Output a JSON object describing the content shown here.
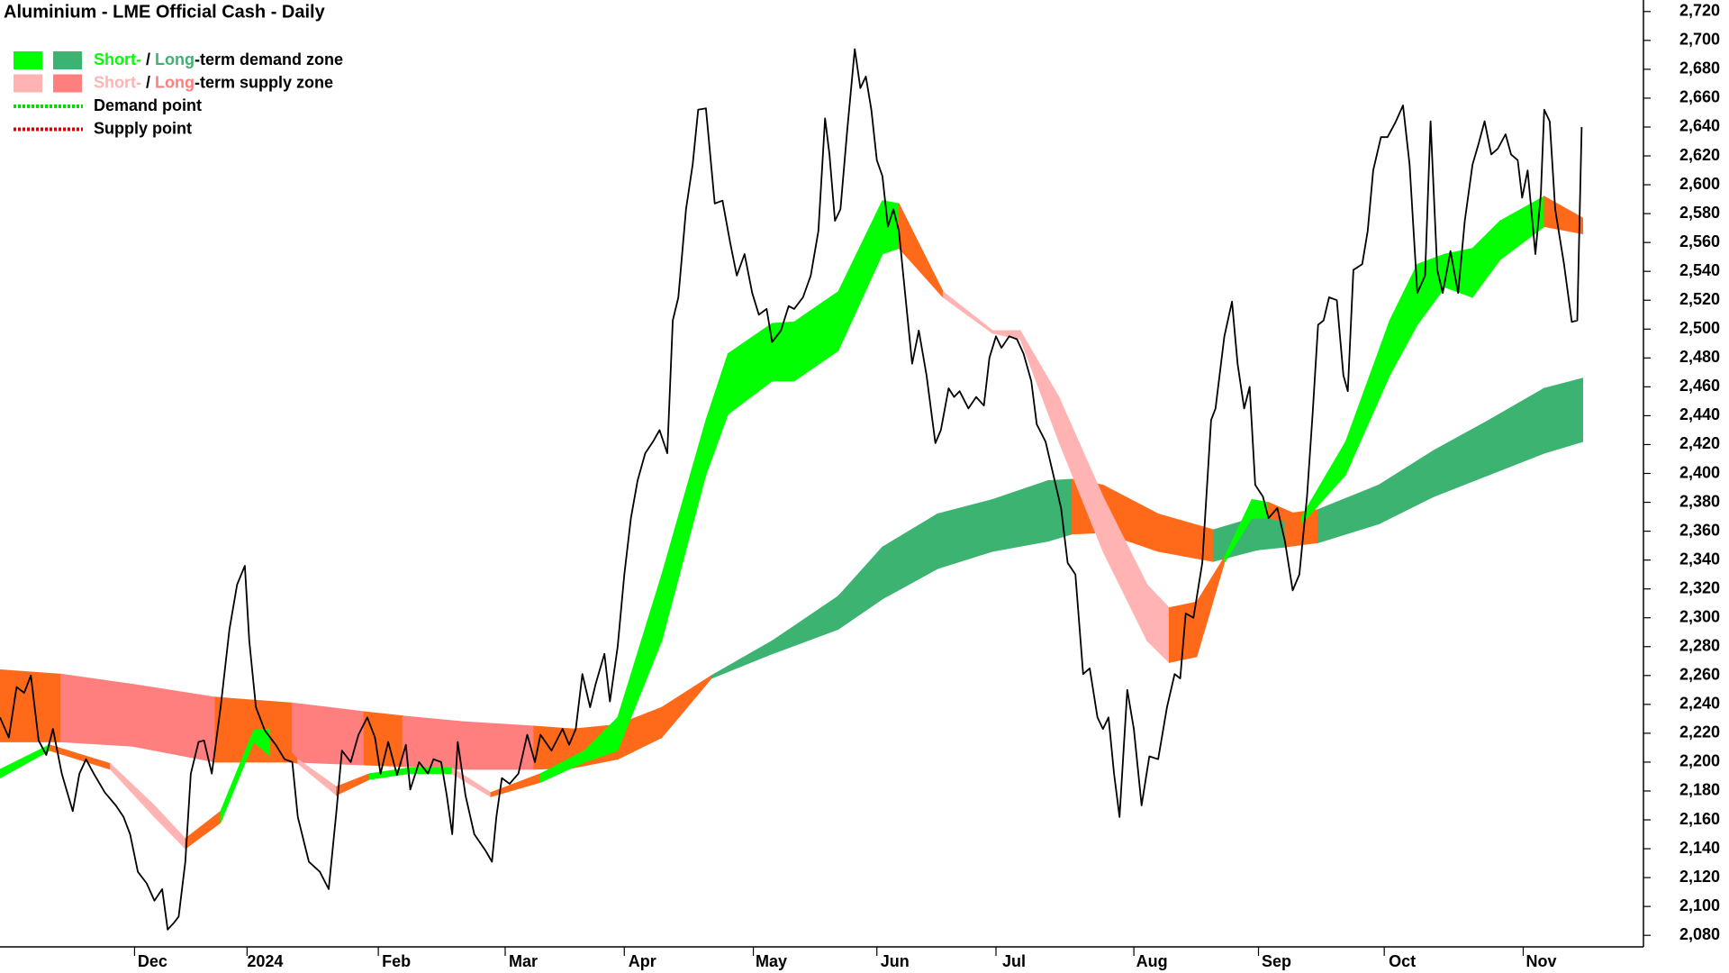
{
  "chart_data": {
    "type": "line",
    "title": "Aluminium - LME Official Cash - Daily",
    "xlim": [
      0,
      149
    ],
    "xticks": [
      {
        "value": 12.2,
        "label": "Dec"
      },
      {
        "value": 22.4,
        "label": "2024"
      },
      {
        "value": 34.3,
        "label": "Feb"
      },
      {
        "value": 45.8,
        "label": "Mar"
      },
      {
        "value": 56.6,
        "label": "Apr"
      },
      {
        "value": 68.3,
        "label": "May"
      },
      {
        "value": 79.5,
        "label": "Jun"
      },
      {
        "value": 90.3,
        "label": "Jul"
      },
      {
        "value": 102.8,
        "label": "Aug"
      },
      {
        "value": 114.1,
        "label": "Sep"
      },
      {
        "value": 125.5,
        "label": "Oct"
      },
      {
        "value": 138.1,
        "label": "Nov"
      }
    ],
    "ylim": [
      2072,
      2728
    ],
    "yticks": [
      {
        "value": 2080,
        "label": "2,080"
      },
      {
        "value": 2100,
        "label": "2,100"
      },
      {
        "value": 2120,
        "label": "2,120"
      },
      {
        "value": 2140,
        "label": "2,140"
      },
      {
        "value": 2160,
        "label": "2,160"
      },
      {
        "value": 2180,
        "label": "2,180"
      },
      {
        "value": 2200,
        "label": "2,200"
      },
      {
        "value": 2220,
        "label": "2,220"
      },
      {
        "value": 2240,
        "label": "2,240"
      },
      {
        "value": 2260,
        "label": "2,260"
      },
      {
        "value": 2280,
        "label": "2,280"
      },
      {
        "value": 2300,
        "label": "2,300"
      },
      {
        "value": 2320,
        "label": "2,320"
      },
      {
        "value": 2340,
        "label": "2,340"
      },
      {
        "value": 2360,
        "label": "2,360"
      },
      {
        "value": 2380,
        "label": "2,380"
      },
      {
        "value": 2400,
        "label": "2,400"
      },
      {
        "value": 2420,
        "label": "2,420"
      },
      {
        "value": 2440,
        "label": "2,440"
      },
      {
        "value": 2460,
        "label": "2,460"
      },
      {
        "value": 2480,
        "label": "2,480"
      },
      {
        "value": 2500,
        "label": "2,500"
      },
      {
        "value": 2520,
        "label": "2,520"
      },
      {
        "value": 2540,
        "label": "2,540"
      },
      {
        "value": 2560,
        "label": "2,560"
      },
      {
        "value": 2580,
        "label": "2,580"
      },
      {
        "value": 2600,
        "label": "2,600"
      },
      {
        "value": 2620,
        "label": "2,620"
      },
      {
        "value": 2640,
        "label": "2,640"
      },
      {
        "value": 2660,
        "label": "2,660"
      },
      {
        "value": 2680,
        "label": "2,680"
      },
      {
        "value": 2700,
        "label": "2,700"
      },
      {
        "value": 2720,
        "label": "2,720"
      }
    ],
    "grid": false,
    "legend": [
      {
        "short": "Short-",
        "sep": " / ",
        "long": "Long",
        "rest": "-term demand zone",
        "short_color": "#00ff00",
        "long_color": "#3cb371"
      },
      {
        "short": "Short-",
        "sep": " / ",
        "long": "Long",
        "rest": "-term supply zone",
        "short_color": "#ffb3b3",
        "long_color": "#ff7f7f"
      },
      {
        "label": "Demand point",
        "color": "#00dd00"
      },
      {
        "label": "Supply point",
        "color": "#dd0000"
      }
    ],
    "bands": [
      {
        "x": [
          0,
          5.5,
          12,
          19.5,
          26.5,
          33,
          36.5,
          42,
          48.4,
          52,
          56,
          60,
          64.5,
          70,
          76,
          80,
          85,
          90,
          95,
          97.2,
          100,
          105,
          110,
          114,
          116.5,
          119.5,
          125,
          130,
          135,
          140,
          143.5
        ],
        "upper": [
          2264,
          2261,
          2254,
          2245,
          2241,
          2235,
          2232,
          2228,
          2225,
          2223,
          2226,
          2238,
          2260,
          2284,
          2315,
          2349,
          2372,
          2382,
          2395,
          2396,
          2392,
          2372,
          2361,
          2370,
          2372,
          2375,
          2392,
          2416,
          2437,
          2459,
          2466
        ],
        "lower": [
          2214,
          2214,
          2211,
          2200,
          2200,
          2198,
          2197,
          2195,
          2195,
          2196,
          2202,
          2217,
          2258,
          2275,
          2292,
          2313,
          2334,
          2346,
          2353,
          2358,
          2359,
          2346,
          2339,
          2347,
          2349,
          2352,
          2365,
          2384,
          2399,
          2414,
          2422
        ],
        "colors": [
          "#ff6a1a",
          "#ff7f7f",
          "#ff7f7f",
          "#ff6a1a",
          "#ff7f7f",
          "#ff6a1a",
          "#ff7f7f",
          "#ff7f7f",
          "#ff6a1a",
          "#ff6a1a",
          "#ff6a1a",
          "#ff6a1a",
          "#3cb371",
          "#3cb371",
          "#3cb371",
          "#3cb371",
          "#3cb371",
          "#3cb371",
          "#3cb371",
          "#ff6a1a",
          "#ff6a1a",
          "#ff6a1a",
          "#3cb371",
          "#3cb371",
          "#ff6a1a",
          "#3cb371",
          "#3cb371",
          "#3cb371",
          "#3cb371",
          "#3cb371"
        ]
      },
      {
        "x": [
          0,
          4.5,
          10,
          14,
          16.8,
          20,
          23,
          24.5,
          27,
          30.5,
          33.5,
          37,
          41,
          44.5,
          49,
          53,
          56,
          60,
          64,
          66,
          70,
          72,
          76,
          80,
          81.5,
          85.5,
          90,
          92.5,
          96,
          100,
          104,
          106,
          108.5,
          111,
          113.5,
          115,
          118,
          122,
          126,
          128.5,
          131,
          133.5,
          136,
          140,
          143.5
        ],
        "upper": [
          2195,
          2212,
          2199,
          2170,
          2147,
          2166,
          2222,
          2223,
          2202,
          2183,
          2192,
          2196,
          2196,
          2179,
          2192,
          2208,
          2231,
          2330,
          2437,
          2483,
          2504,
          2505,
          2526,
          2589,
          2587,
          2526,
          2499,
          2499,
          2453,
          2384,
          2323,
          2307,
          2311,
          2342,
          2382,
          2380,
          2370,
          2422,
          2506,
          2545,
          2552,
          2556,
          2575,
          2592,
          2577
        ],
        "lower": [
          2189,
          2208,
          2195,
          2162,
          2140,
          2158,
          2214,
          2204,
          2199,
          2177,
          2188,
          2192,
          2192,
          2176,
          2186,
          2200,
          2208,
          2284,
          2399,
          2441,
          2464,
          2464,
          2485,
          2552,
          2556,
          2522,
          2497,
          2493,
          2422,
          2346,
          2284,
          2269,
          2273,
          2338,
          2369,
          2369,
          2365,
          2399,
          2468,
          2503,
          2529,
          2522,
          2548,
          2571,
          2566
        ],
        "colors": [
          "#00ff00",
          "#ff6a1a",
          "#ffb3b3",
          "#ffb3b3",
          "#ff6a1a",
          "#00ff00",
          "#00ff00",
          "#ff6a1a",
          "#ffb3b3",
          "#ff6a1a",
          "#00ff00",
          "#00ff00",
          "#ffb3b3",
          "#ff6a1a",
          "#00ff00",
          "#00ff00",
          "#00ff00",
          "#00ff00",
          "#00ff00",
          "#00ff00",
          "#00ff00",
          "#00ff00",
          "#00ff00",
          "#00ff00",
          "#ff6a1a",
          "#ffb3b3",
          "#ffb3b3",
          "#ffb3b3",
          "#ffb3b3",
          "#ffb3b3",
          "#ffb3b3",
          "#ff6a1a",
          "#ff6a1a",
          "#00ff00",
          "#00ff00",
          "#ff6a1a",
          "#00ff00",
          "#00ff00",
          "#00ff00",
          "#00ff00",
          "#00ff00",
          "#00ff00",
          "#00ff00",
          "#ff6a1a"
        ]
      }
    ],
    "x": [
      0,
      0.8,
      1.5,
      2.2,
      2.8,
      3.5,
      4.2,
      4.8,
      5.6,
      6.6,
      7.2,
      7.8,
      8.5,
      9.5,
      10.5,
      11.2,
      11.8,
      12.5,
      13.3,
      14,
      14.7,
      15.2,
      15.8,
      16.2,
      16.8,
      17.3,
      18,
      18.5,
      19.2,
      20,
      20.8,
      21.5,
      22.2,
      22.6,
      23.2,
      24,
      25,
      25.8,
      26.5,
      27,
      28,
      29,
      29.8,
      30.5,
      31,
      31.8,
      32.5,
      33.3,
      34,
      34.5,
      35.2,
      36,
      36.8,
      37.2,
      38,
      38.8,
      39.3,
      40,
      40.5,
      41,
      41.5,
      42.2,
      43,
      44,
      44.6,
      45,
      45.5,
      46.2,
      47,
      47.8,
      48.5,
      49,
      50,
      51,
      51.6,
      52.2,
      52.8,
      53.5,
      54,
      54.8,
      55.3,
      56,
      56.6,
      57.2,
      57.8,
      58.5,
      59.2,
      59.8,
      60.5,
      61,
      61.5,
      62.2,
      62.8,
      63.3,
      64,
      64.8,
      65.5,
      66.2,
      66.8,
      67.5,
      68.2,
      68.8,
      69.5,
      70,
      70.8,
      71.5,
      72,
      72.8,
      73.5,
      74.2,
      74.8,
      75.2,
      75.7,
      76.2,
      76.8,
      77.5,
      78,
      78.5,
      79,
      79.5,
      80,
      80.5,
      81,
      81.5,
      82,
      82.7,
      83.3,
      84,
      84.8,
      85.3,
      86,
      86.5,
      87,
      87.8,
      88.5,
      89.2,
      89.7,
      90.3,
      90.8,
      91.5,
      92.2,
      92.8,
      93.5,
      94,
      94.8,
      95.5,
      96.2,
      96.8,
      97.5,
      98.2,
      98.8,
      99.5,
      100,
      100.5,
      101,
      101.5,
      102.2,
      102.8,
      103.5,
      104.2,
      105,
      105.8,
      106.5,
      107,
      107.5,
      108.2,
      109,
      109.8,
      110.2,
      111,
      111.7,
      112.2,
      112.8,
      113.3,
      113.8,
      114.5,
      115,
      115.8,
      116.5,
      117.2,
      117.8,
      118.5,
      119,
      119.5,
      120,
      120.5,
      121.2,
      121.8,
      122.2,
      122.7,
      123.5,
      124,
      124.5,
      125.2,
      125.8,
      126.5,
      127.2,
      127.8,
      128.5,
      129.2,
      129.7,
      130.3,
      130.8,
      131.5,
      132.2,
      132.8,
      133.5,
      134,
      134.6,
      135.2,
      135.8,
      136.5,
      137,
      137.6,
      138,
      138.5,
      139.2,
      139.7,
      140,
      140.5,
      141,
      141.8,
      142.5,
      143,
      143.4
    ],
    "series": [
      {
        "color": "#000000",
        "values": [
          2231,
          2217,
          2252,
          2248,
          2260,
          2215,
          2205,
          2223,
          2192,
          2166,
          2192,
          2202,
          2192,
          2179,
          2170,
          2162,
          2150,
          2124,
          2116,
          2104,
          2112,
          2084,
          2089,
          2093,
          2131,
          2192,
          2214,
          2215,
          2192,
          2238,
          2292,
          2323,
          2336,
          2284,
          2238,
          2222,
          2212,
          2202,
          2200,
          2162,
          2131,
          2124,
          2112,
          2166,
          2208,
          2200,
          2219,
          2231,
          2217,
          2192,
          2214,
          2191,
          2212,
          2181,
          2200,
          2192,
          2202,
          2200,
          2177,
          2150,
          2214,
          2177,
          2150,
          2139,
          2131,
          2162,
          2189,
          2185,
          2192,
          2219,
          2200,
          2219,
          2208,
          2223,
          2212,
          2223,
          2261,
          2238,
          2254,
          2275,
          2242,
          2280,
          2330,
          2369,
          2395,
          2414,
          2422,
          2430,
          2414,
          2506,
          2522,
          2583,
          2614,
          2652,
          2653,
          2587,
          2589,
          2560,
          2537,
          2552,
          2525,
          2510,
          2514,
          2491,
          2499,
          2516,
          2514,
          2522,
          2537,
          2568,
          2646,
          2621,
          2575,
          2583,
          2637,
          2694,
          2667,
          2675,
          2652,
          2617,
          2606,
          2571,
          2583,
          2568,
          2529,
          2476,
          2499,
          2468,
          2421,
          2430,
          2459,
          2453,
          2457,
          2445,
          2453,
          2447,
          2480,
          2495,
          2487,
          2495,
          2493,
          2483,
          2464,
          2434,
          2422,
          2399,
          2376,
          2338,
          2330,
          2261,
          2265,
          2231,
          2223,
          2231,
          2192,
          2162,
          2250,
          2223,
          2170,
          2204,
          2202,
          2238,
          2261,
          2258,
          2303,
          2300,
          2338,
          2437,
          2445,
          2495,
          2519,
          2476,
          2445,
          2460,
          2392,
          2384,
          2369,
          2376,
          2353,
          2319,
          2330,
          2384,
          2441,
          2503,
          2506,
          2522,
          2520,
          2468,
          2457,
          2541,
          2545,
          2568,
          2610,
          2633,
          2633,
          2643,
          2655,
          2614,
          2525,
          2537,
          2644,
          2541,
          2525,
          2554,
          2525,
          2575,
          2614,
          2627,
          2644,
          2621,
          2625,
          2635,
          2621,
          2617,
          2591,
          2610,
          2552,
          2594,
          2652,
          2644,
          2583,
          2545,
          2505,
          2506,
          2640
        ]
      }
    ]
  }
}
